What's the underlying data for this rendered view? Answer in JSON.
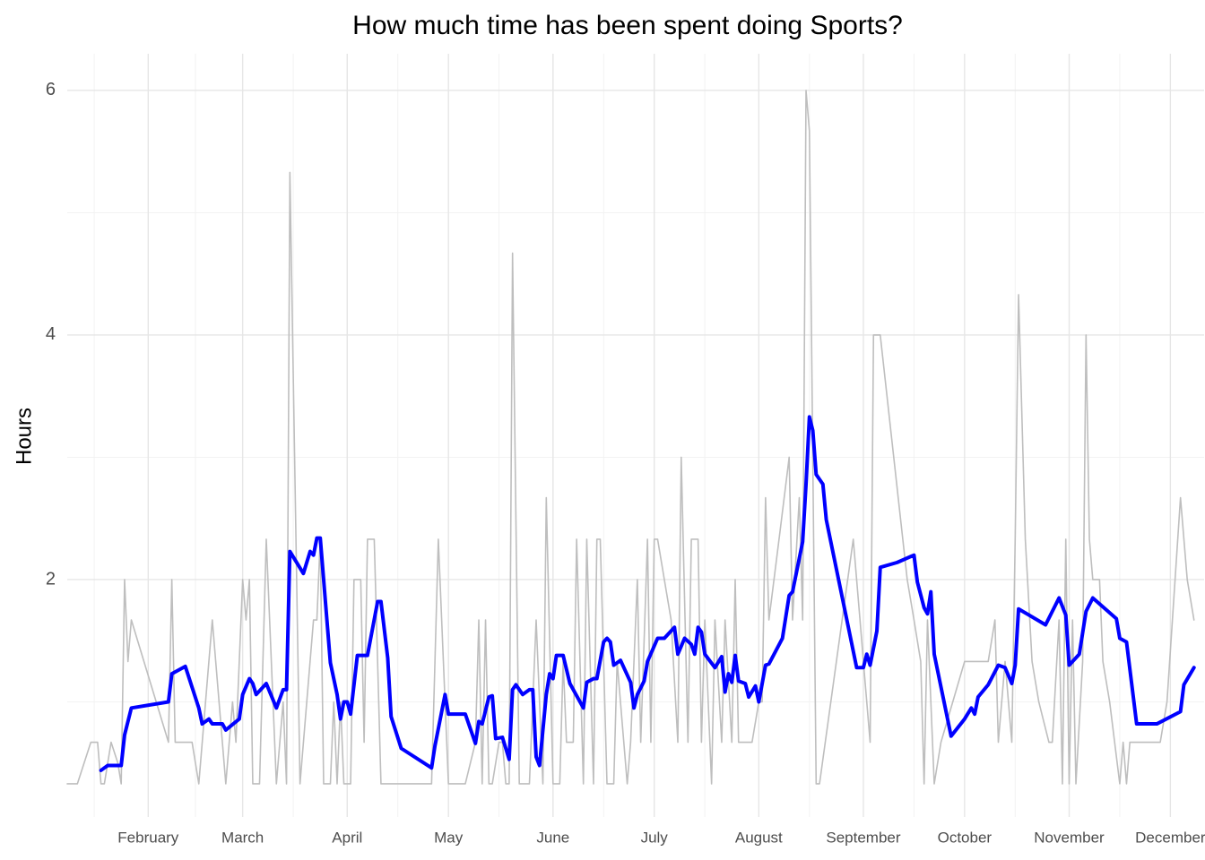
{
  "chart_data": {
    "type": "line",
    "title": "How much time has been spent doing Sports?",
    "ylabel": "Hours",
    "xlim": [
      8,
      345
    ],
    "ylim": [
      0,
      6.3
    ],
    "xticks": [
      {
        "value": 32,
        "label": "February"
      },
      {
        "value": 60,
        "label": "March"
      },
      {
        "value": 91,
        "label": "April"
      },
      {
        "value": 121,
        "label": "May"
      },
      {
        "value": 152,
        "label": "June"
      },
      {
        "value": 182,
        "label": "July"
      },
      {
        "value": 213,
        "label": "August"
      },
      {
        "value": 244,
        "label": "September"
      },
      {
        "value": 274,
        "label": "October"
      },
      {
        "value": 305,
        "label": "November"
      },
      {
        "value": 335,
        "label": "December"
      }
    ],
    "minor_xticks": [
      16,
      46,
      75,
      106,
      136,
      167,
      197,
      228,
      259,
      289,
      320
    ],
    "yticks": [
      2,
      4,
      6
    ],
    "minor_yticks": [
      1,
      3,
      5
    ],
    "grid": true,
    "series": [
      {
        "color": "#bebebe",
        "x": [
          8,
          11,
          15,
          17,
          18,
          19,
          21,
          23,
          24,
          25,
          26,
          27,
          38,
          39,
          40,
          45,
          47,
          51,
          55,
          57,
          58,
          60,
          61,
          62,
          63,
          65,
          67,
          70,
          72,
          73,
          74,
          76,
          77,
          79,
          81,
          82,
          83,
          84,
          86,
          87,
          88,
          89,
          90,
          92,
          93,
          95,
          96,
          97,
          99,
          101,
          103,
          105,
          107,
          116,
          118,
          121,
          126,
          129,
          130,
          131,
          132,
          133,
          134,
          136,
          137,
          138,
          139,
          140,
          142,
          145,
          147,
          149,
          150,
          152,
          154,
          155,
          156,
          158,
          159,
          161,
          162,
          164,
          165,
          166,
          168,
          170,
          171,
          174,
          175,
          177,
          178,
          180,
          181,
          182,
          183,
          185,
          187,
          189,
          190,
          192,
          193,
          195,
          196,
          197,
          199,
          200,
          202,
          203,
          205,
          206,
          207,
          209,
          211,
          213,
          214,
          215,
          216,
          219,
          222,
          223,
          225,
          226,
          227,
          228,
          230,
          231,
          241,
          243,
          244,
          246,
          247,
          249,
          257,
          259,
          261,
          262,
          263,
          265,
          267,
          274,
          276,
          278,
          281,
          283,
          284,
          286,
          288,
          289,
          290,
          292,
          294,
          296,
          299,
          300,
          302,
          303,
          304,
          305,
          306,
          307,
          309,
          310,
          311,
          312,
          314,
          315,
          317,
          320,
          321,
          322,
          323,
          326,
          330,
          332,
          334,
          338,
          340,
          342
        ],
        "values": [
          0.33,
          0.33,
          0.67,
          0.67,
          0.33,
          0.33,
          0.67,
          0.5,
          0.33,
          2,
          1.33,
          1.67,
          0.67,
          2,
          0.67,
          0.67,
          0.33,
          1.67,
          0.33,
          1,
          0.67,
          2,
          1.67,
          2,
          0.33,
          0.33,
          2.33,
          0.33,
          1,
          0.33,
          5.33,
          2,
          0.33,
          1,
          1.67,
          1.67,
          2.33,
          0.33,
          0.33,
          1,
          0.33,
          1,
          0.33,
          0.33,
          2,
          2,
          0.67,
          2.33,
          2.33,
          0.33,
          0.33,
          0.33,
          0.33,
          0.33,
          2.33,
          0.33,
          0.33,
          0.67,
          1.67,
          0.33,
          1.67,
          0.33,
          0.33,
          0.67,
          0.67,
          0.33,
          0.33,
          4.67,
          0.33,
          0.33,
          1.67,
          0.33,
          2.67,
          0.33,
          0.33,
          1.33,
          0.67,
          0.67,
          2.33,
          0.33,
          2.33,
          0.33,
          2.33,
          2.33,
          0.33,
          0.33,
          1.33,
          0.33,
          0.67,
          2,
          0.67,
          2.33,
          0.67,
          2.33,
          2.33,
          2,
          1.67,
          0.67,
          3,
          0.67,
          2.33,
          2.33,
          0.67,
          1.67,
          0.33,
          1.67,
          0.67,
          1.67,
          0.67,
          2,
          0.67,
          0.67,
          0.67,
          1,
          1,
          2.67,
          1.67,
          2.33,
          3,
          1.67,
          2.67,
          1.67,
          6,
          5.67,
          0.33,
          0.33,
          2.33,
          1.67,
          1.33,
          0.67,
          4,
          4,
          2,
          1.67,
          1.33,
          0.33,
          1.67,
          0.33,
          0.67,
          1.33,
          1.33,
          1.33,
          1.33,
          1.67,
          0.67,
          1.33,
          0.67,
          2.33,
          4.33,
          2.33,
          1.33,
          1,
          0.67,
          0.67,
          1.67,
          0.33,
          2.33,
          0.33,
          1.67,
          0.33,
          1.33,
          4,
          2.33,
          2,
          2,
          1.33,
          1,
          0.33,
          0.67,
          0.33,
          0.67,
          0.67,
          0.67,
          0.67,
          1,
          2.67,
          2,
          1.67
        ]
      },
      {
        "color": "#0000ff",
        "x": [
          18,
          20,
          24,
          25,
          27,
          38,
          39,
          43,
          47,
          48,
          50,
          51,
          54,
          55,
          59,
          60,
          62,
          63,
          64,
          67,
          70,
          72,
          73,
          74,
          78,
          80,
          81,
          82,
          83,
          86,
          88,
          89,
          90,
          91,
          92,
          94,
          97,
          100,
          101,
          103,
          104,
          107,
          116,
          117,
          120,
          121,
          126,
          129,
          130,
          131,
          133,
          134,
          135,
          137,
          139,
          140,
          141,
          143,
          145,
          146,
          147,
          148,
          150,
          151,
          152,
          153,
          155,
          157,
          161,
          162,
          164,
          165,
          167,
          168,
          169,
          170,
          172,
          175,
          176,
          177,
          179,
          180,
          183,
          185,
          188,
          189,
          191,
          193,
          194,
          195,
          196,
          197,
          200,
          202,
          203,
          204,
          205,
          206,
          207,
          209,
          210,
          212,
          213,
          215,
          216,
          220,
          222,
          223,
          226,
          227,
          228,
          229,
          230,
          232,
          233,
          242,
          244,
          245,
          246,
          248,
          249,
          254,
          259,
          260,
          262,
          263,
          264,
          265,
          270,
          274,
          276,
          277,
          278,
          281,
          284,
          286,
          288,
          289,
          290,
          298,
          302,
          304,
          305,
          308,
          310,
          312,
          319,
          320,
          322,
          325,
          331,
          338,
          339,
          342
        ],
        "values": [
          0.44,
          0.48,
          0.48,
          0.73,
          0.95,
          1.0,
          1.23,
          1.29,
          0.95,
          0.82,
          0.86,
          0.82,
          0.82,
          0.77,
          0.86,
          1.06,
          1.19,
          1.15,
          1.06,
          1.15,
          0.95,
          1.1,
          1.1,
          2.23,
          2.05,
          2.23,
          2.2,
          2.34,
          2.34,
          1.32,
          1.06,
          0.86,
          1.0,
          1.0,
          0.9,
          1.38,
          1.38,
          1.82,
          1.82,
          1.36,
          0.88,
          0.62,
          0.46,
          0.64,
          1.06,
          0.9,
          0.9,
          0.66,
          0.84,
          0.82,
          1.04,
          1.05,
          0.7,
          0.71,
          0.53,
          1.1,
          1.14,
          1.06,
          1.1,
          1.1,
          0.55,
          0.48,
          1.06,
          1.23,
          1.19,
          1.38,
          1.38,
          1.15,
          0.95,
          1.16,
          1.19,
          1.19,
          1.49,
          1.52,
          1.49,
          1.3,
          1.34,
          1.16,
          0.95,
          1.06,
          1.17,
          1.33,
          1.52,
          1.52,
          1.61,
          1.39,
          1.52,
          1.47,
          1.39,
          1.61,
          1.57,
          1.39,
          1.28,
          1.37,
          1.08,
          1.23,
          1.16,
          1.38,
          1.17,
          1.15,
          1.04,
          1.13,
          1.0,
          1.3,
          1.31,
          1.52,
          1.87,
          1.9,
          2.31,
          2.78,
          3.33,
          3.22,
          2.86,
          2.78,
          2.49,
          1.28,
          1.28,
          1.39,
          1.3,
          1.58,
          2.1,
          2.14,
          2.2,
          1.98,
          1.77,
          1.72,
          1.9,
          1.39,
          0.72,
          0.86,
          0.95,
          0.9,
          1.04,
          1.14,
          1.3,
          1.28,
          1.15,
          1.3,
          1.76,
          1.63,
          1.85,
          1.71,
          1.3,
          1.39,
          1.74,
          1.85,
          1.68,
          1.52,
          1.49,
          0.82,
          0.82,
          0.92,
          1.14,
          1.28
        ]
      }
    ]
  }
}
